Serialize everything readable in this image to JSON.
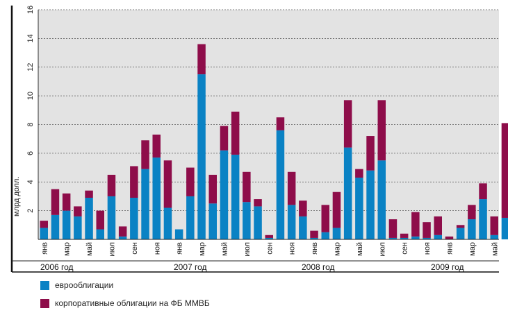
{
  "chart_data": {
    "type": "bar",
    "stacked": true,
    "ylabel": "млрд долл.",
    "ylim": [
      0,
      16
    ],
    "yticks": [
      "2",
      "4",
      "6",
      "8",
      "10",
      "12",
      "14",
      "16"
    ],
    "grid": true,
    "month_labels": [
      "янв",
      "мар",
      "май",
      "июл",
      "сен",
      "ноя",
      "янв",
      "мар",
      "май",
      "июл",
      "сен",
      "ноя",
      "янв",
      "мар",
      "май",
      "июл",
      "сен",
      "ноя",
      "янв",
      "мар",
      "май"
    ],
    "year_labels": [
      "2006 год",
      "2007 год",
      "2008 год",
      "2009 год"
    ],
    "categories": [
      "янв 2006",
      "фев 2006",
      "мар 2006",
      "апр 2006",
      "май 2006",
      "июн 2006",
      "июл 2006",
      "авг 2006",
      "сен 2006",
      "окт 2006",
      "ноя 2006",
      "дек 2006",
      "янв 2007",
      "фев 2007",
      "мар 2007",
      "апр 2007",
      "май 2007",
      "июн 2007",
      "июл 2007",
      "авг 2007",
      "сен 2007",
      "окт 2007",
      "ноя 2007",
      "дек 2007",
      "янв 2008",
      "фев 2008",
      "мар 2008",
      "апр 2008",
      "май 2008",
      "июн 2008",
      "июл 2008",
      "авг 2008",
      "сен 2008",
      "окт 2008",
      "ноя 2008",
      "дек 2008",
      "янв 2009",
      "фев 2009",
      "мар 2009",
      "апр 2009",
      "май 2009",
      "июн 2009"
    ],
    "series": [
      {
        "name": "еврооблигации",
        "color": "#0a82c4",
        "values": [
          0.8,
          1.7,
          2.0,
          1.6,
          2.9,
          0.7,
          3.0,
          0.2,
          2.9,
          4.9,
          5.7,
          2.2,
          0.7,
          3.0,
          11.5,
          2.5,
          6.2,
          5.9,
          2.6,
          2.3,
          0.1,
          7.6,
          2.4,
          1.6,
          0.1,
          0.5,
          0.8,
          6.4,
          4.3,
          4.8,
          5.5,
          0.1,
          0.1,
          0.2,
          0.1,
          0.3,
          0.0,
          0.8,
          1.4,
          2.8,
          0.3,
          1.5
        ]
      },
      {
        "name": "корпоративные облигации на ФБ ММВБ",
        "color": "#8e0d4a",
        "values": [
          0.5,
          1.8,
          1.2,
          0.7,
          0.5,
          1.3,
          1.5,
          0.7,
          2.2,
          2.0,
          1.6,
          3.3,
          0.0,
          2.0,
          2.1,
          2.0,
          1.7,
          3.0,
          2.1,
          0.5,
          0.2,
          0.9,
          2.3,
          1.1,
          0.5,
          1.9,
          2.5,
          3.3,
          0.6,
          2.4,
          4.2,
          1.3,
          0.3,
          1.7,
          1.1,
          1.3,
          0.2,
          0.2,
          1.0,
          1.1,
          1.3,
          6.6
        ]
      }
    ]
  }
}
